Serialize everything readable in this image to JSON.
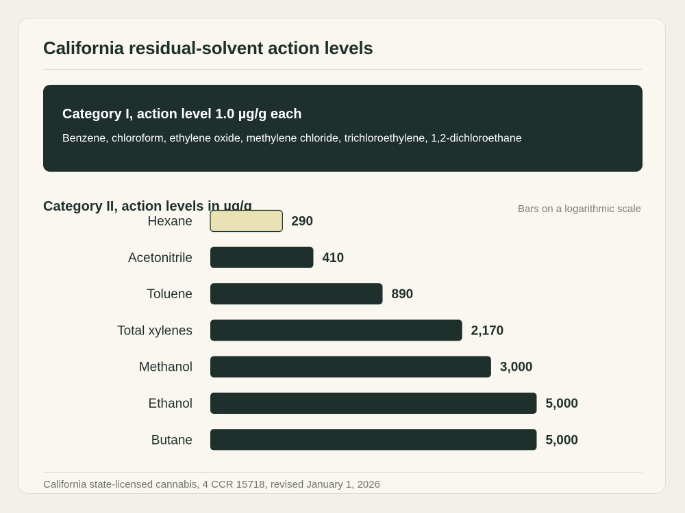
{
  "title": "California residual-solvent action levels",
  "category_1": {
    "heading": "Category I, action level 1.0 µg/g each",
    "solvents": "Benzene, chloroform, ethylene oxide, methylene chloride, trichloroethylene, 1,2-dichloroethane"
  },
  "category_2": {
    "heading": "Category II, action levels in µg/g",
    "scale_note": "Bars on a logarithmic scale"
  },
  "source": "California state-licensed cannabis, 4 CCR 15718, revised January 1, 2026",
  "colors": {
    "bar": "#1e302b",
    "highlight_bar": "#e8e2b5",
    "highlight_border": "#1e302b",
    "value_label": "#1e302b",
    "category_label": "#1e302b"
  },
  "chart_data": {
    "type": "bar",
    "orientation": "horizontal",
    "scale": "log",
    "categories": [
      "Hexane",
      "Acetonitrile",
      "Toluene",
      "Total xylenes",
      "Methanol",
      "Ethanol",
      "Butane"
    ],
    "values": [
      290,
      410,
      890,
      2170,
      3000,
      5000,
      5000
    ],
    "value_labels": [
      "290",
      "410",
      "890",
      "2,170",
      "3,000",
      "5,000",
      "5,000"
    ],
    "highlight": [
      "Hexane"
    ],
    "grid": false,
    "legend": "none"
  }
}
